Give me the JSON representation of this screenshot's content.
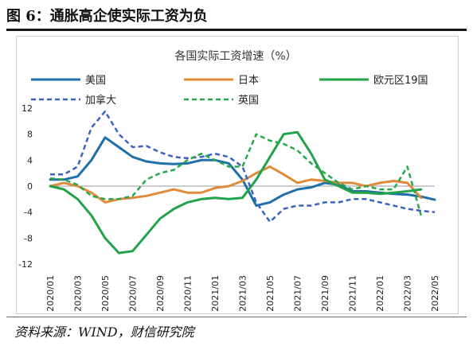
{
  "figure": {
    "title": "图 6：通胀高企使实际工资为负",
    "source": "资料来源：WIND，财信研究院"
  },
  "chart_data": {
    "type": "line",
    "title": "各国实际工资增速（%）",
    "ylim": [
      -12,
      12
    ],
    "yticks": [
      "12",
      "8",
      "4",
      "0",
      "-4",
      "-8",
      "-12"
    ],
    "xticks": [
      "2020/01",
      "2020/03",
      "2020/05",
      "2020/07",
      "2020/09",
      "2020/11",
      "2021/01",
      "2021/03",
      "2021/05",
      "2021/07",
      "2021/09",
      "2021/11",
      "2022/01",
      "2022/03",
      "2022/05"
    ],
    "x": [
      "2020/01",
      "2020/02",
      "2020/03",
      "2020/04",
      "2020/05",
      "2020/06",
      "2020/07",
      "2020/08",
      "2020/09",
      "2020/10",
      "2020/11",
      "2020/12",
      "2021/01",
      "2021/02",
      "2021/03",
      "2021/04",
      "2021/05",
      "2021/06",
      "2021/07",
      "2021/08",
      "2021/09",
      "2021/10",
      "2021/11",
      "2021/12",
      "2022/01",
      "2022/02",
      "2022/03",
      "2022/04",
      "2022/05"
    ],
    "legend_position": "top",
    "series": [
      {
        "name": "美国",
        "color": "#1f6fa8",
        "dash": false,
        "values": [
          1.0,
          1.0,
          1.5,
          4.0,
          7.5,
          6.0,
          4.5,
          3.8,
          3.5,
          3.4,
          3.5,
          4.0,
          4.0,
          3.5,
          1.0,
          -3.0,
          -2.5,
          -1.3,
          -0.5,
          -0.2,
          0.5,
          0.2,
          -0.8,
          -0.8,
          -1.0,
          -1.2,
          -1.3,
          -1.6,
          -2.1
        ]
      },
      {
        "name": "日本",
        "color": "#e08b3a",
        "dash": false,
        "values": [
          0.0,
          0.5,
          0.0,
          -1.0,
          -2.5,
          -2.0,
          -1.8,
          -1.5,
          -1.0,
          -0.5,
          -1.0,
          -1.0,
          -0.3,
          0.0,
          0.8,
          2.0,
          3.0,
          1.8,
          0.5,
          1.0,
          0.8,
          0.5,
          0.5,
          0.0,
          0.5,
          0.8,
          0.5,
          -1.8,
          null
        ]
      },
      {
        "name": "欧元区19国",
        "color": "#22a34a",
        "dash": false,
        "values": [
          0.0,
          -0.5,
          -2.0,
          -4.5,
          -8.0,
          -10.3,
          -10.0,
          -7.5,
          -5.0,
          -3.5,
          -2.5,
          -2.0,
          -1.8,
          -2.0,
          -1.8,
          1.0,
          4.5,
          8.0,
          8.3,
          5.0,
          1.0,
          0.0,
          -1.0,
          -1.0,
          -1.2,
          -1.0,
          -0.8,
          -0.5,
          null
        ]
      },
      {
        "name": "加拿大",
        "color": "#3a64c2",
        "dash": true,
        "values": [
          1.8,
          1.8,
          3.0,
          9.0,
          11.5,
          8.0,
          6.0,
          6.2,
          5.2,
          4.5,
          4.3,
          4.5,
          5.0,
          4.5,
          3.0,
          -2.5,
          -5.5,
          -3.5,
          -3.0,
          -3.0,
          -2.5,
          -2.5,
          -2.0,
          -2.0,
          -2.5,
          -3.0,
          -3.5,
          -3.8,
          -4.0
        ]
      },
      {
        "name": "英国",
        "color": "#27a84a",
        "dash": true,
        "values": [
          1.2,
          1.0,
          0.2,
          -1.5,
          -2.0,
          -2.0,
          -1.5,
          1.0,
          2.0,
          2.5,
          4.0,
          5.0,
          4.0,
          3.0,
          3.0,
          8.0,
          7.0,
          6.5,
          5.5,
          3.5,
          2.0,
          0.5,
          -0.5,
          0.0,
          -0.5,
          -0.5,
          3.0,
          -4.5,
          null
        ]
      }
    ]
  }
}
